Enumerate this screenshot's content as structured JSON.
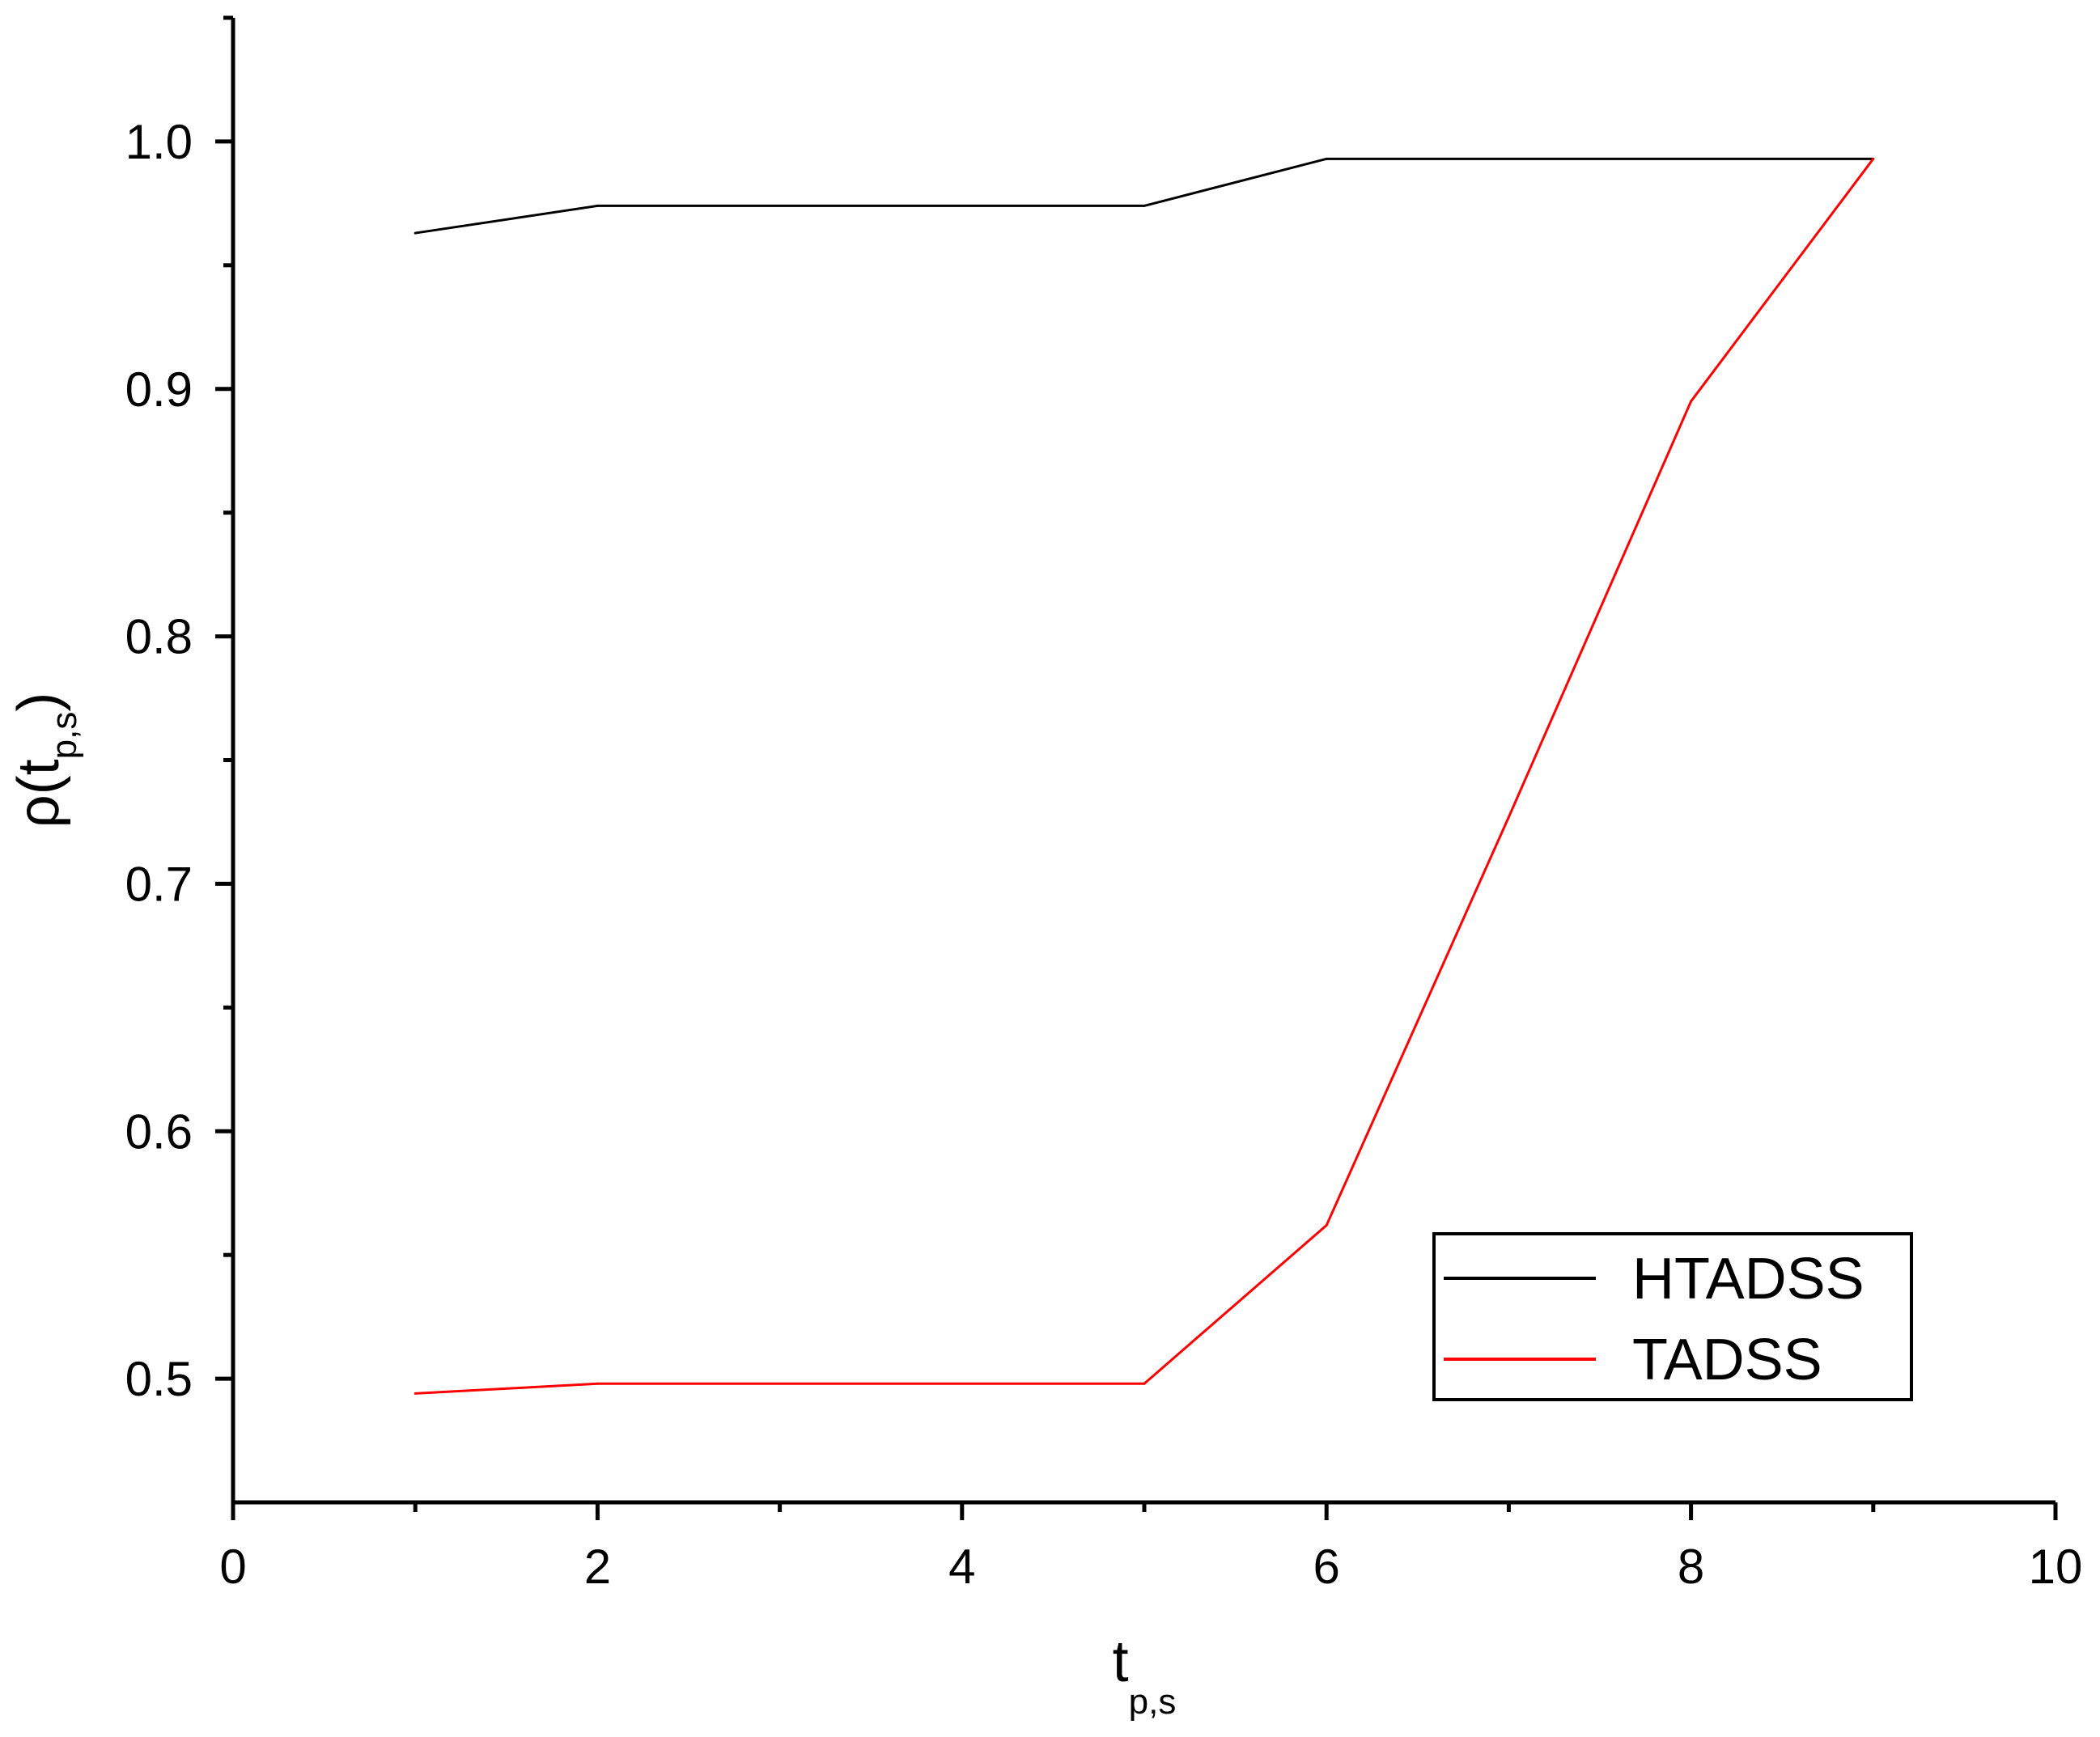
{
  "chart_data": {
    "type": "line",
    "title": "",
    "xlabel": {
      "main": "t",
      "sub": "p,s"
    },
    "ylabel": {
      "prefix": "ρ(t",
      "sub": "p,s",
      "suffix": ")"
    },
    "xlim": [
      0,
      10
    ],
    "ylim": [
      0.45,
      1.05
    ],
    "x_ticks": [
      0,
      2,
      4,
      6,
      8,
      10
    ],
    "x_tick_labels": [
      "0",
      "2",
      "4",
      "6",
      "8",
      "10"
    ],
    "y_ticks": [
      0.5,
      0.6,
      0.7,
      0.8,
      0.9,
      1.0
    ],
    "y_tick_labels": [
      "0.5",
      "0.6",
      "0.7",
      "0.8",
      "0.9",
      "1.0"
    ],
    "grid": false,
    "legend_position": "bottom-right",
    "series": [
      {
        "name": "HTADSS",
        "color": "#000000",
        "x": [
          1,
          2,
          5,
          6,
          9
        ],
        "y": [
          0.963,
          0.974,
          0.974,
          0.993,
          0.993
        ]
      },
      {
        "name": "TADSS",
        "color": "#ff0000",
        "x": [
          1,
          2,
          5,
          6,
          7,
          8,
          9
        ],
        "y": [
          0.494,
          0.498,
          0.498,
          0.562,
          0.727,
          0.895,
          0.993
        ]
      }
    ]
  }
}
